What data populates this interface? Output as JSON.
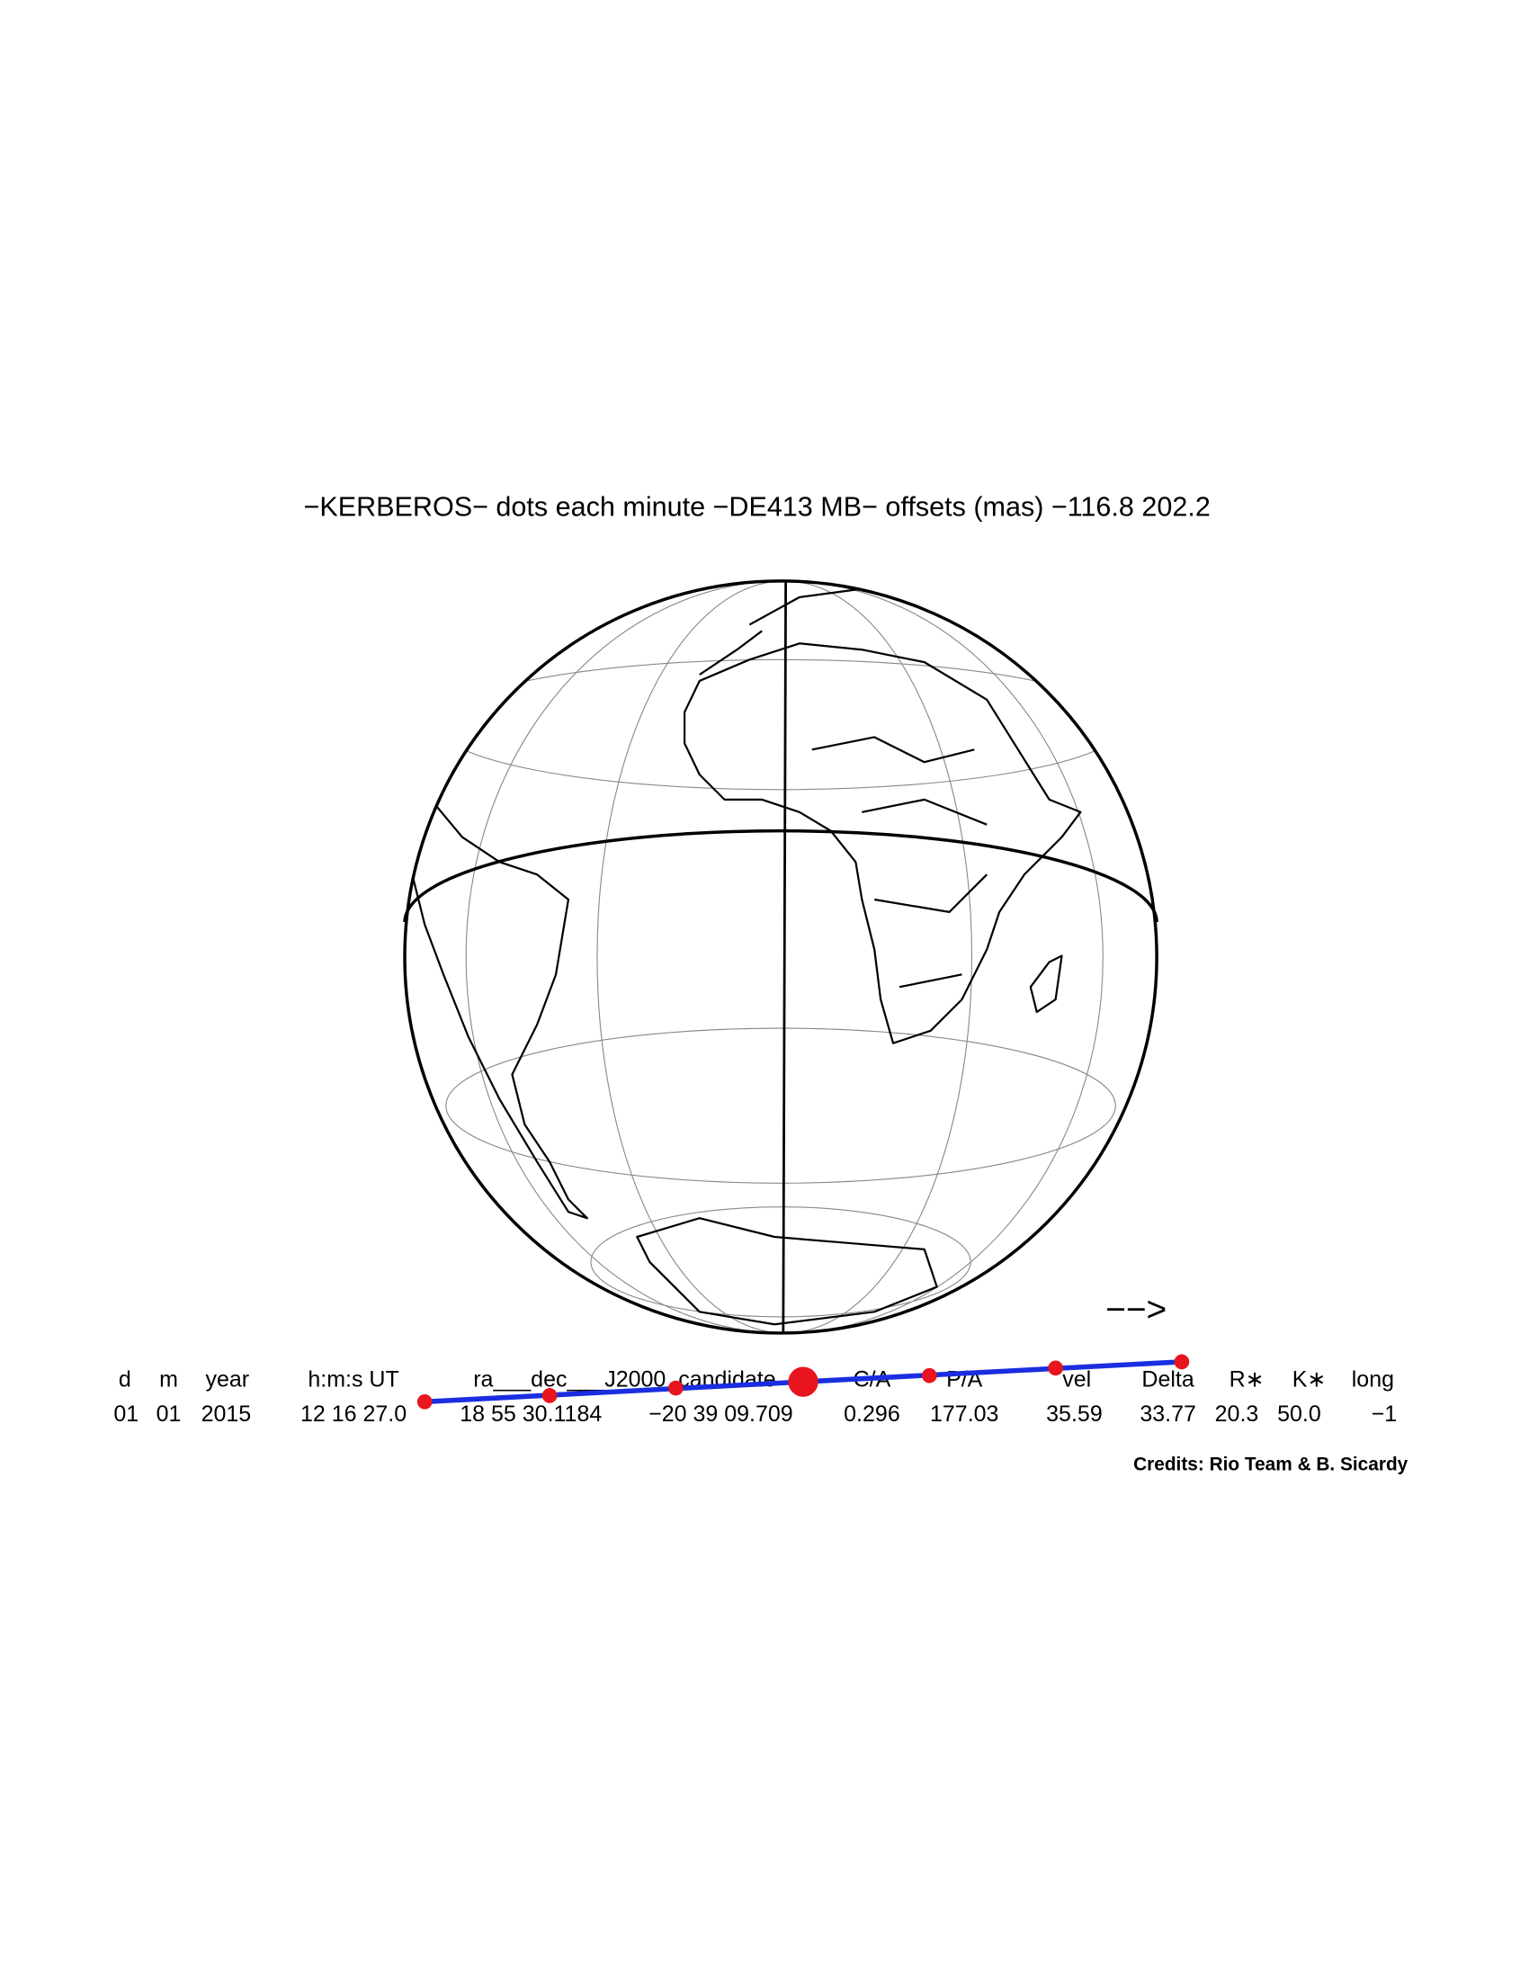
{
  "title": "−KERBEROS− dots each minute −DE413 MB− offsets (mas) −116.8  202.2",
  "direction_arrow": "−−>",
  "table": {
    "headers": [
      "d",
      "m",
      "year",
      "h:m:s UT",
      "ra___dec___J2000_candidate",
      "C/A",
      "P/A",
      "vel",
      "Delta",
      "R∗",
      "K∗",
      "long"
    ],
    "rows": [
      [
        "01",
        "01",
        "2015",
        "12 16 27.0",
        "18 55 30.1184",
        "−20 39 09.709",
        "0.296",
        "177.03",
        "35.59",
        "33.77",
        "20.3",
        "50.0",
        "−1"
      ]
    ]
  },
  "credits": "Credits: Rio Team & B. Sicardy"
}
